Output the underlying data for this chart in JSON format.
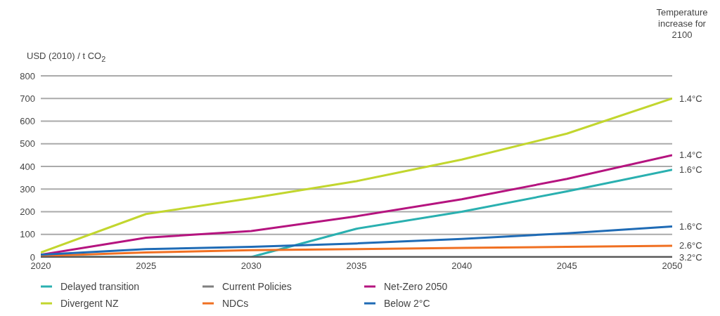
{
  "chart_data": {
    "type": "line",
    "ylabel": "USD (2010) / t CO$_{2}$",
    "x": [
      2020,
      2025,
      2030,
      2035,
      2040,
      2045,
      2050
    ],
    "xlim": [
      2020,
      2050
    ],
    "xticks": [
      2020,
      2025,
      2030,
      2035,
      2040,
      2045,
      2050
    ],
    "ylim": [
      0,
      800
    ],
    "yticks": [
      0,
      100,
      200,
      300,
      400,
      500,
      600,
      700,
      800
    ],
    "grid": "y",
    "legend": "bottom",
    "marker": "none",
    "line_style": "solid",
    "series": [
      {
        "name": "Delayed transition",
        "color": "#2ab0b0",
        "values": [
          0,
          0,
          0,
          125,
          200,
          290,
          385
        ]
      },
      {
        "name": "Current Policies",
        "color": "#7f7f7f",
        "values": [
          0,
          0,
          0,
          0,
          0,
          0,
          0
        ]
      },
      {
        "name": "Net-Zero 2050",
        "color": "#b5147f",
        "values": [
          10,
          85,
          115,
          180,
          255,
          345,
          450
        ]
      },
      {
        "name": "Divergent NZ",
        "color": "#c2d62e",
        "values": [
          20,
          190,
          260,
          335,
          430,
          545,
          700
        ]
      },
      {
        "name": "NDCs",
        "color": "#f07022",
        "values": [
          5,
          20,
          30,
          35,
          40,
          45,
          50
        ]
      },
      {
        "name": "Below 2°C",
        "color": "#1f6bb5",
        "values": [
          10,
          35,
          45,
          60,
          80,
          105,
          135
        ]
      }
    ],
    "annotations": [
      "Temperature increase for 2100",
      "1.4°C",
      "1.4°C",
      "1.6°C",
      "1.6°C",
      "2.6°C",
      "3.2°C"
    ]
  }
}
